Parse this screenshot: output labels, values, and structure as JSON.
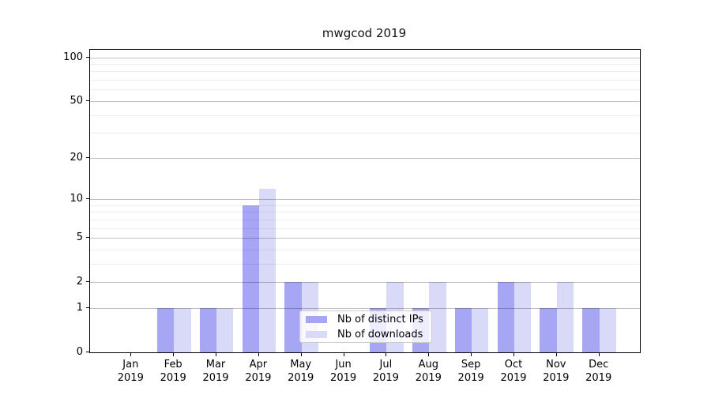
{
  "chart_data": {
    "type": "bar",
    "title": "mwgcod 2019",
    "categories": [
      "Jan",
      "Feb",
      "Mar",
      "Apr",
      "May",
      "Jun",
      "Jul",
      "Aug",
      "Sep",
      "Oct",
      "Nov",
      "Dec"
    ],
    "year_label": "2019",
    "series": [
      {
        "name": "Nb of distinct IPs",
        "color": "#a6a6f5",
        "values": [
          0,
          1,
          1,
          9,
          2,
          0,
          1,
          1,
          1,
          2,
          1,
          1
        ]
      },
      {
        "name": "Nb of downloads",
        "color": "#d9d9f8",
        "values": [
          0,
          1,
          1,
          12,
          2,
          0,
          2,
          2,
          1,
          2,
          2,
          1
        ]
      }
    ],
    "xlabel": "",
    "ylabel": "",
    "y_scale": "log1p",
    "y_ticks": [
      0,
      1,
      2,
      5,
      10,
      20,
      50,
      100
    ],
    "y_minor_ticks": [
      3,
      4,
      6,
      7,
      8,
      9,
      30,
      40,
      60,
      70,
      80,
      90
    ],
    "ylim": [
      0,
      112
    ],
    "grid": "on",
    "legend_position": "lower center-right inside plot"
  }
}
